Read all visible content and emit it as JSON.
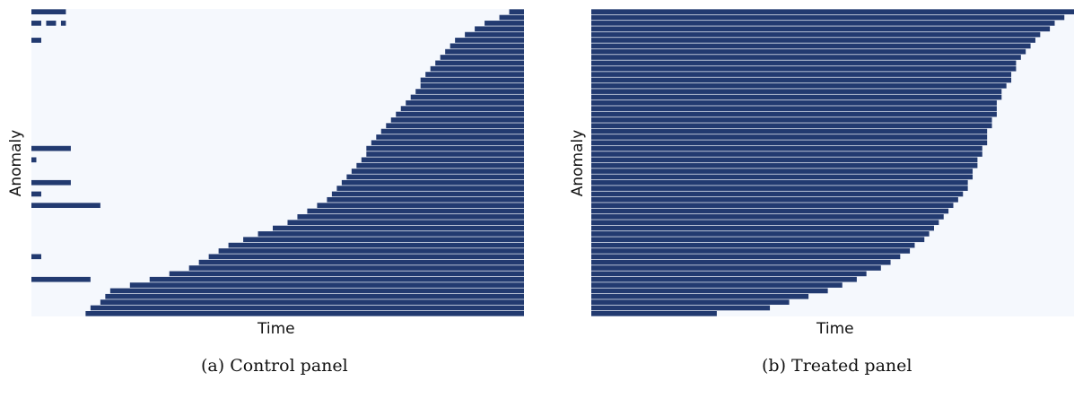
{
  "chart_data": [
    {
      "type": "heatmap",
      "caption": "(a) Control panel",
      "xlabel": "Time",
      "ylabel": "Anomaly",
      "background_color": "#f5f8fd",
      "fill_color": "#223a70",
      "n_rows": 54,
      "n_cols": 100,
      "onset_cols": [
        97,
        97,
        95,
        93,
        91,
        89,
        87,
        86,
        86,
        85,
        85,
        85,
        84,
        84,
        82,
        82,
        82,
        82,
        82,
        82,
        80,
        80,
        80,
        80,
        80,
        78,
        78,
        78,
        78,
        78,
        78,
        78,
        76,
        76,
        76,
        76,
        76,
        76,
        76,
        74,
        74,
        74,
        74,
        74,
        74,
        74,
        72,
        72,
        72,
        72,
        72,
        72,
        72,
        72,
        70,
        70,
        70,
        70,
        70,
        70,
        68,
        68,
        68,
        68,
        68,
        68,
        68,
        66,
        66,
        66,
        64,
        64,
        64,
        64,
        62,
        62,
        61,
        61,
        61,
        60,
        60,
        59,
        59,
        57,
        57,
        57,
        55,
        55,
        55,
        55,
        55,
        55,
        53,
        53,
        53,
        53,
        53,
        53,
        53,
        53,
        53,
        53,
        51,
        51,
        51,
        51,
        49,
        49,
        48,
        47,
        45,
        43,
        41,
        38,
        35,
        31,
        27,
        23,
        19,
        16
      ],
      "onset_rows_note": "",
      "onsets": [
        97,
        95,
        92,
        90,
        88,
        86,
        85,
        84,
        83,
        82,
        81,
        80,
        79,
        79,
        78,
        77,
        76,
        75,
        74,
        73,
        72,
        71,
        70,
        69,
        68,
        68,
        67,
        66,
        65,
        64,
        63,
        62,
        61,
        60,
        58,
        56,
        54,
        52,
        49,
        46,
        43,
        40,
        38,
        36,
        34,
        32,
        28,
        24,
        20,
        16,
        15,
        14,
        12,
        11
      ],
      "partial_rows": [
        {
          "row": 0,
          "start": 0,
          "end": 7
        },
        {
          "row": 2,
          "start": 0,
          "end": 2
        },
        {
          "row": 2,
          "start": 3,
          "end": 5
        },
        {
          "row": 2,
          "start": 6,
          "end": 7
        },
        {
          "row": 5,
          "start": 0,
          "end": 2
        },
        {
          "row": 24,
          "start": 0,
          "end": 8
        },
        {
          "row": 26,
          "start": 0,
          "end": 1
        },
        {
          "row": 30,
          "start": 0,
          "end": 8
        },
        {
          "row": 32,
          "start": 0,
          "end": 2
        },
        {
          "row": 34,
          "start": 0,
          "end": 14
        },
        {
          "row": 43,
          "start": 0,
          "end": 2
        },
        {
          "row": 47,
          "start": 0,
          "end": 12
        }
      ]
    },
    {
      "type": "heatmap",
      "caption": "(b) Treated panel",
      "xlabel": "Time",
      "ylabel": "Anomaly",
      "background_color": "#f5f8fd",
      "fill_color": "#223a70",
      "n_rows": 54,
      "n_cols": 100,
      "ends": [
        100,
        98,
        96,
        95,
        93,
        92,
        91,
        90,
        89,
        88,
        88,
        87,
        87,
        86,
        85,
        85,
        84,
        84,
        84,
        83,
        83,
        82,
        82,
        82,
        81,
        81,
        80,
        80,
        79,
        79,
        78,
        78,
        77,
        76,
        75,
        74,
        73,
        72,
        71,
        70,
        69,
        67,
        66,
        64,
        62,
        60,
        57,
        55,
        52,
        49,
        45,
        41,
        37,
        26
      ],
      "partial_rows": []
    }
  ]
}
